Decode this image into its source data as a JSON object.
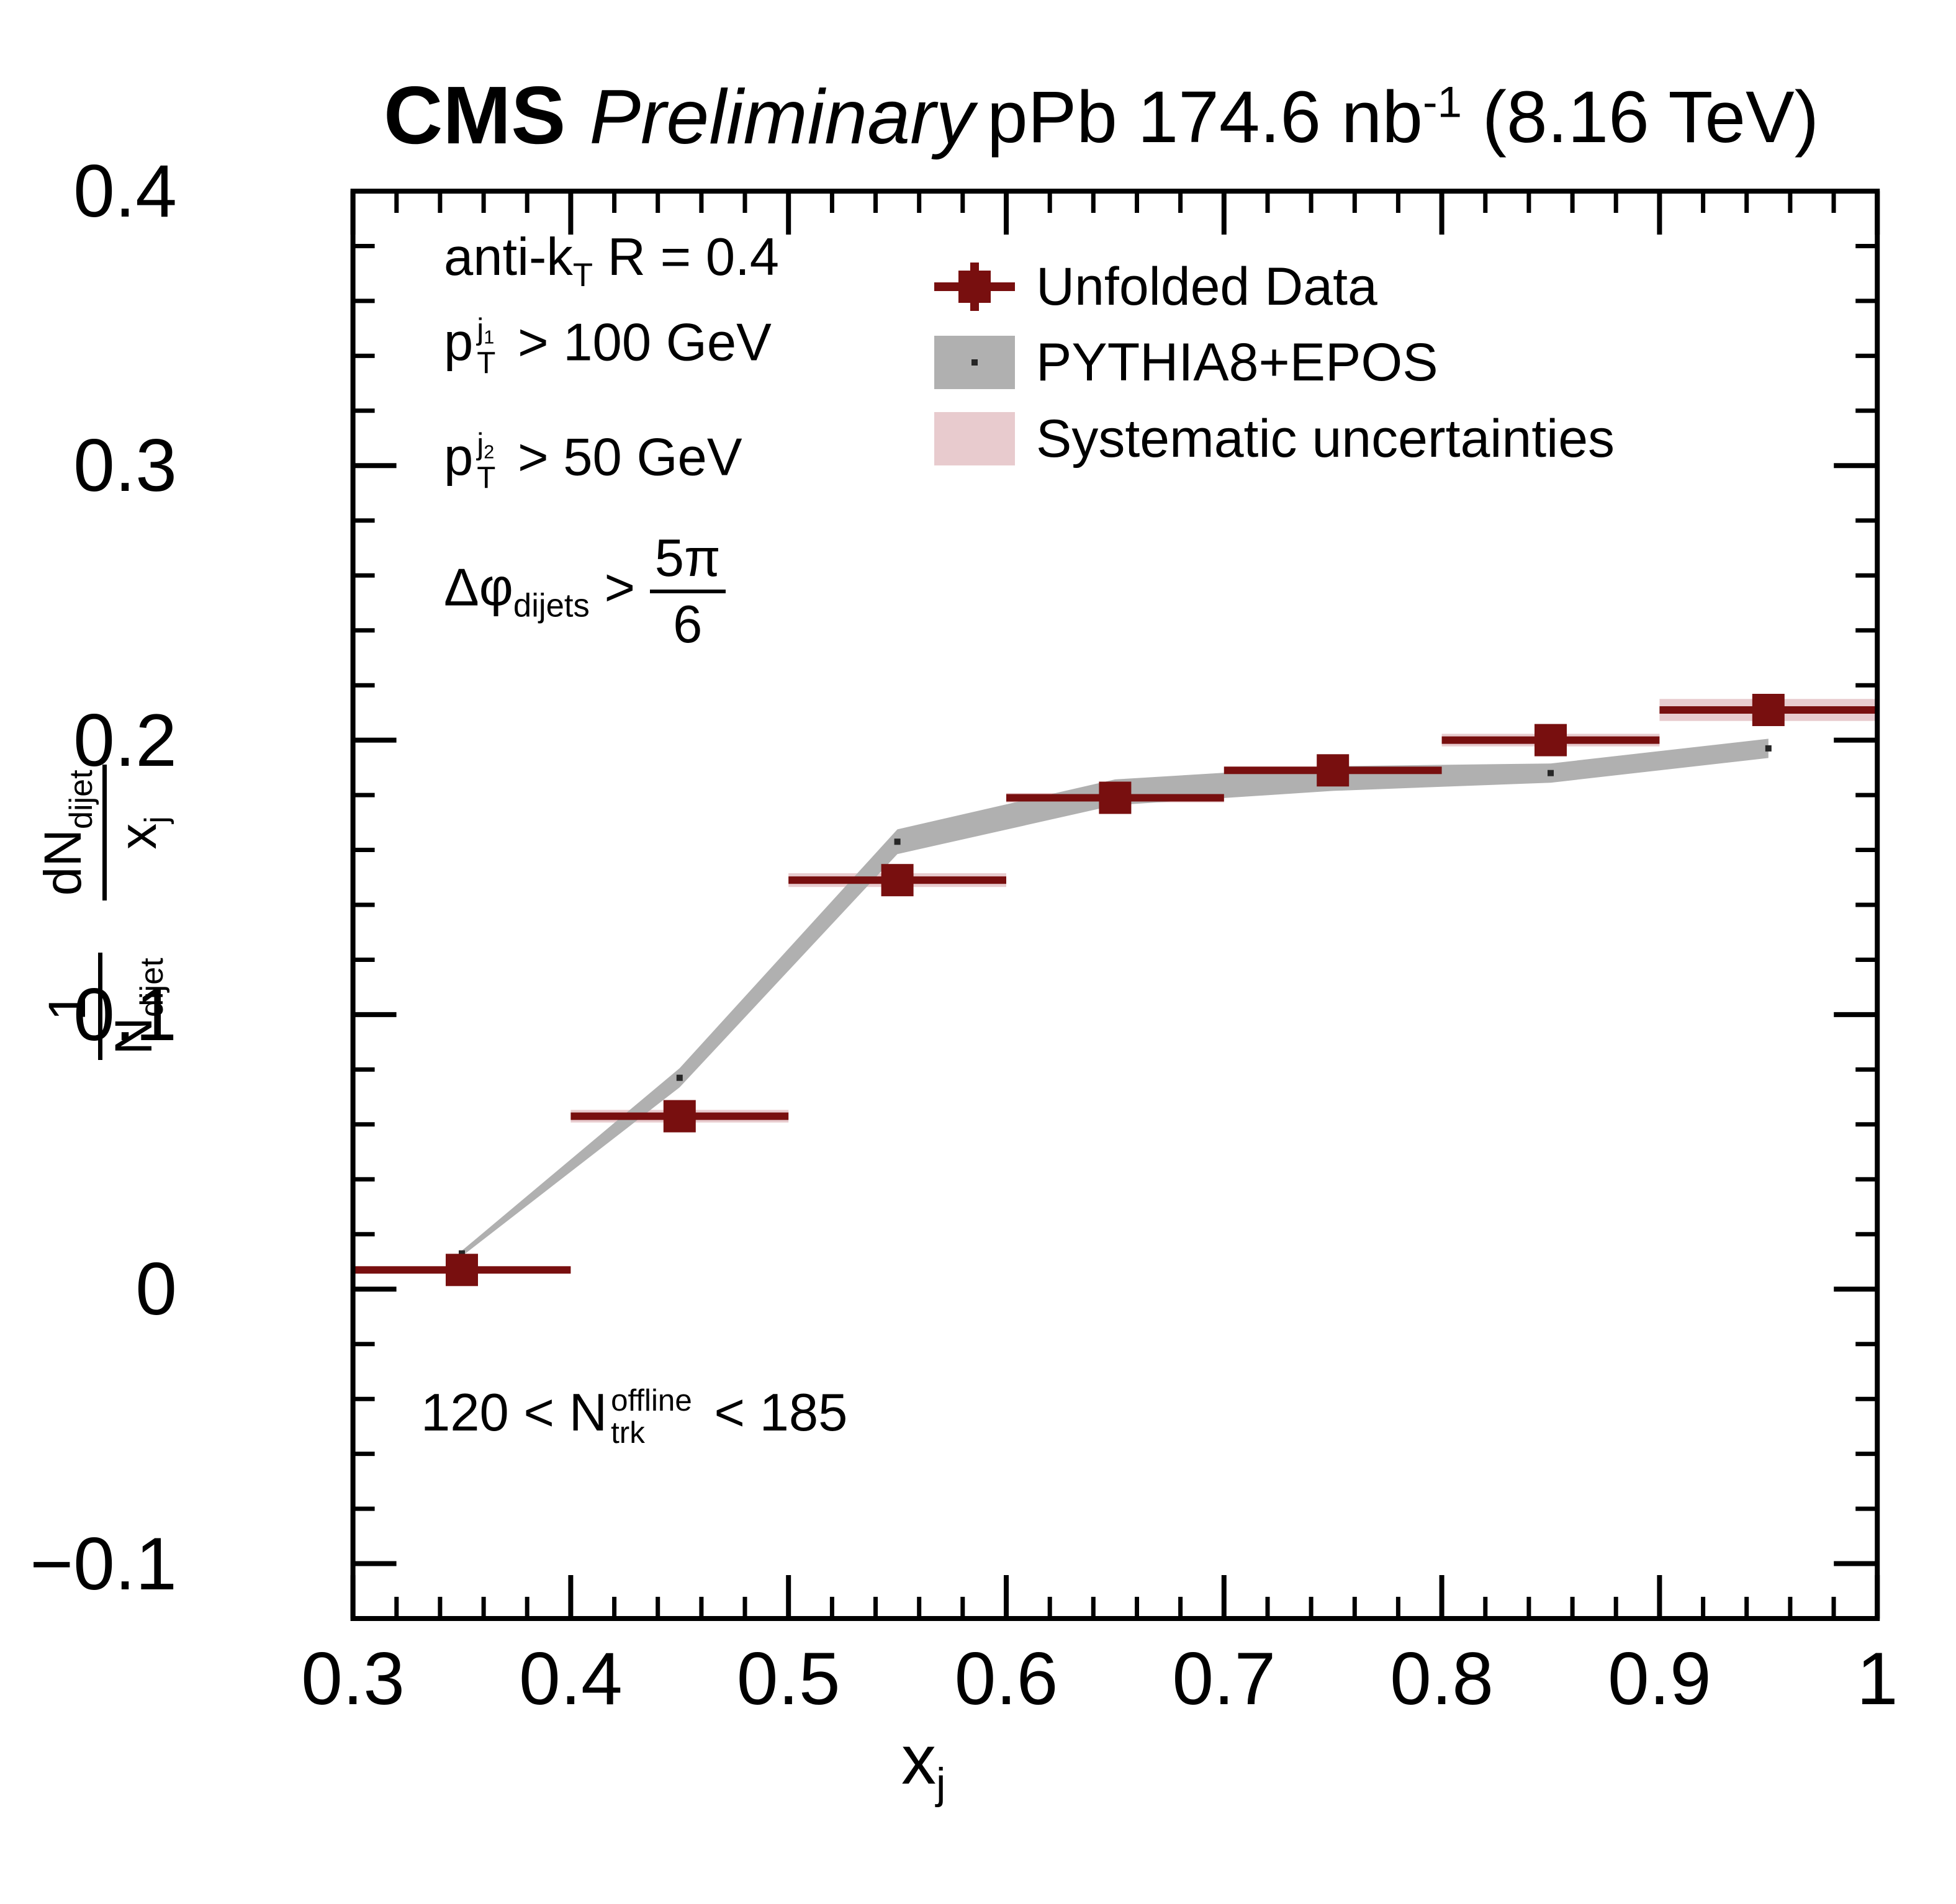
{
  "header": {
    "experiment": "CMS",
    "status": "Preliminary",
    "lumi": {
      "pre": "pPb 174.6 nb",
      "sup": "-1",
      "post": " (8.16 TeV)"
    }
  },
  "legend": {
    "items": [
      {
        "label": "Unfolded Data",
        "symbol": "dark-red-square-with-error-cross"
      },
      {
        "label": "PYTHIA8+EPOS",
        "symbol": "gray-band-with-point"
      },
      {
        "label": "Systematic uncertainties",
        "symbol": "pink-band"
      }
    ]
  },
  "annotations": {
    "jet_algo": {
      "pre": "anti-k",
      "sub": "T",
      "post": " R = 0.4"
    },
    "pt_leading": {
      "base": "p",
      "sup": "j",
      "sup_sub": "1",
      "sub": "T",
      "post": " > 100 GeV"
    },
    "pt_subleading": {
      "base": "p",
      "sup": "j",
      "sup_sub": "2",
      "sub": "T",
      "post": " > 50 GeV"
    },
    "dphi": {
      "base": "Δφ",
      "sub": "dijets",
      "cmp": " > ",
      "frac_num": "5π",
      "frac_den": "6"
    },
    "ntrk": {
      "pre": "120 < N",
      "sup": "offline",
      "sub": "trk",
      "post": " < 185"
    }
  },
  "axes": {
    "x": {
      "title": {
        "base": "x",
        "sub": "j"
      },
      "tick_labels": [
        {
          "value": 0.3,
          "label": "0.3"
        },
        {
          "value": 0.4,
          "label": "0.4"
        },
        {
          "value": 0.5,
          "label": "0.5"
        },
        {
          "value": 0.6,
          "label": "0.6"
        },
        {
          "value": 0.7,
          "label": "0.7"
        },
        {
          "value": 0.8,
          "label": "0.8"
        },
        {
          "value": 0.9,
          "label": "0.9"
        },
        {
          "value": 1.0,
          "label": "1"
        }
      ]
    },
    "y": {
      "title": {
        "frac1": {
          "num": "1",
          "den_base": "N",
          "den_sub": "dijet"
        },
        "frac2": {
          "num_base": "dN",
          "num_sub": "dijet",
          "den_base": "x",
          "den_sub": "j"
        }
      },
      "tick_labels": [
        {
          "value": 0.4,
          "label": "0.4"
        },
        {
          "value": 0.3,
          "label": "0.3"
        },
        {
          "value": 0.2,
          "label": "0.2"
        },
        {
          "value": 0.1,
          "label": "0.1"
        },
        {
          "value": 0,
          "label": "0"
        },
        {
          "value": -0.1,
          "label": "−0.1"
        }
      ]
    }
  },
  "colors": {
    "data": "#780f0f",
    "systematic": "#e8cbce",
    "pythia_band": "#b0b0b0",
    "pythia_point": "#262626",
    "axis": "#000000",
    "background": "#ffffff"
  },
  "chart_data": {
    "type": "scatter",
    "title": "CMS Preliminary  pPb 174.6 nb⁻¹ (8.16 TeV)",
    "xlabel": "x_j",
    "ylabel": "(1/N_dijet) dN_dijet/x_j",
    "xlim": [
      0.3,
      1.0
    ],
    "ylim": [
      -0.12,
      0.4
    ],
    "grid": false,
    "legend_position": "top-right",
    "x": [
      0.35,
      0.45,
      0.55,
      0.65,
      0.75,
      0.85,
      0.95
    ],
    "bin_half_width": 0.05,
    "x_major_tick_step": 0.1,
    "x_minor_tick_step": 0.02,
    "y_major_tick_step": 0.1,
    "y_minor_tick_step": 0.02,
    "series": [
      {
        "name": "Unfolded Data",
        "type": "scatter_square",
        "values": [
          0.007,
          0.063,
          0.149,
          0.179,
          0.189,
          0.2,
          0.211
        ],
        "x_err": 0.05
      },
      {
        "name": "Systematic uncertainties",
        "type": "band_around_data",
        "half_heights": [
          0.0013,
          0.0023,
          0.0025,
          0.0017,
          0.0014,
          0.0023,
          0.004
        ]
      },
      {
        "name": "PYTHIA8+EPOS",
        "type": "band_with_points",
        "values": [
          0.013,
          0.077,
          0.163,
          0.181,
          0.186,
          0.188,
          0.197
        ],
        "half_heights": [
          0.001,
          0.0035,
          0.0045,
          0.0047,
          0.0045,
          0.0035,
          0.0035
        ]
      }
    ]
  }
}
